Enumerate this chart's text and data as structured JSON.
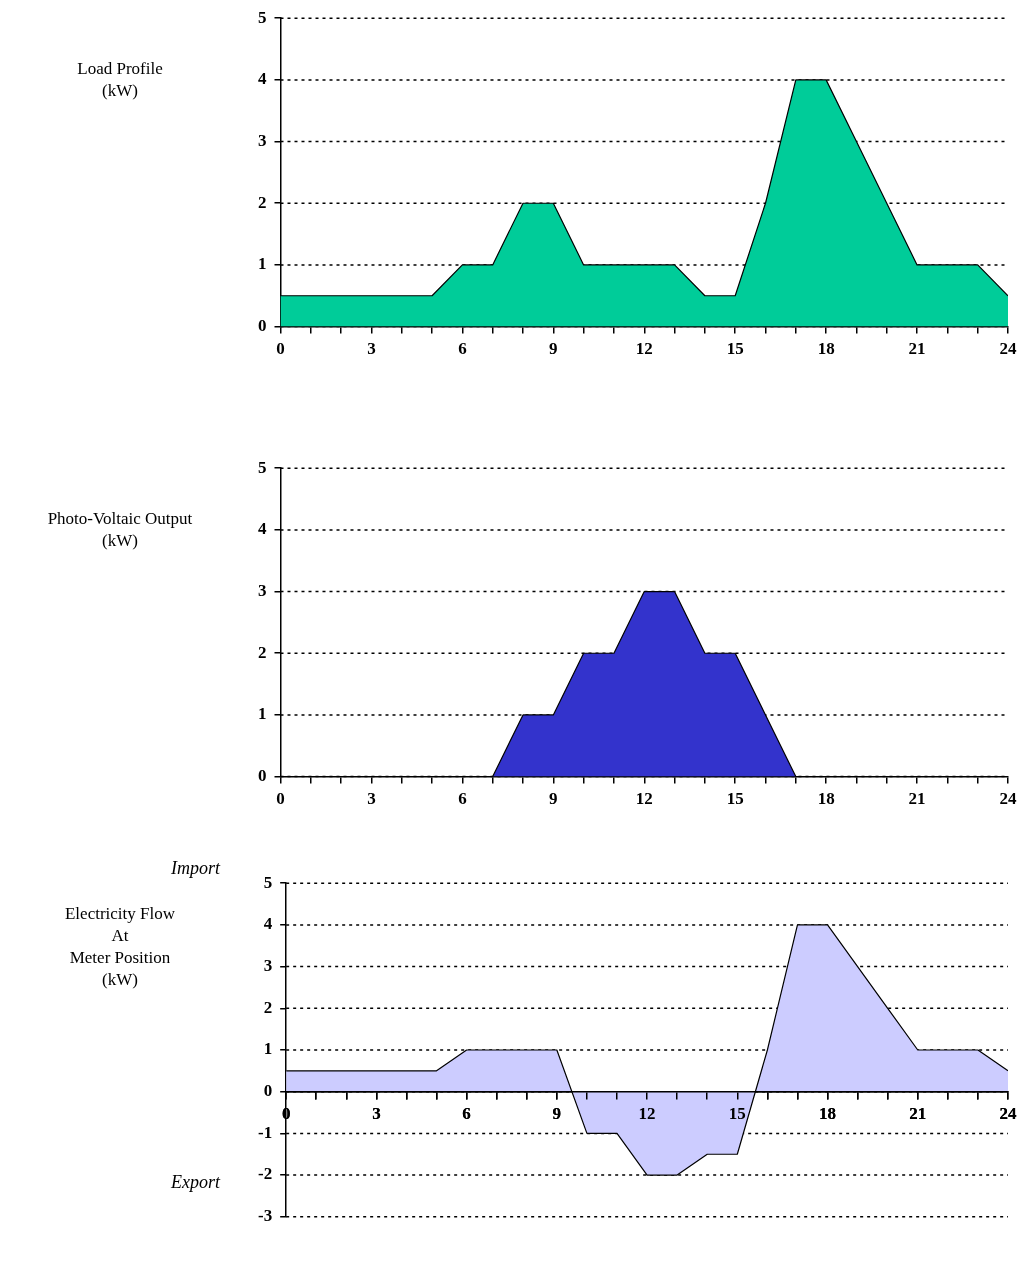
{
  "chart_data": [
    {
      "type": "area",
      "ylabel": "Load Profile\n(kW)",
      "x": [
        0,
        1,
        2,
        3,
        4,
        5,
        6,
        7,
        8,
        9,
        10,
        11,
        12,
        13,
        14,
        15,
        16,
        17,
        18,
        19,
        20,
        21,
        22,
        23,
        24
      ],
      "values": [
        0.5,
        0.5,
        0.5,
        0.5,
        0.5,
        0.5,
        1,
        1,
        2,
        2,
        1,
        1,
        1,
        1,
        0.5,
        0.5,
        2,
        4,
        4,
        3,
        2,
        1,
        1,
        1,
        0.5
      ],
      "color": "#00cc99",
      "xlim": [
        0,
        24
      ],
      "xticks": [
        0,
        {
          "value": 1,
          "label": null
        },
        {
          "value": 2,
          "label": null
        },
        3,
        {
          "value": 4,
          "label": null
        },
        {
          "value": 5,
          "label": null
        },
        6,
        {
          "value": 7,
          "label": null
        },
        {
          "value": 8,
          "label": null
        },
        9,
        {
          "value": 10,
          "label": null
        },
        {
          "value": 11,
          "label": null
        },
        12,
        {
          "value": 13,
          "label": null
        },
        {
          "value": 14,
          "label": null
        },
        15,
        {
          "value": 16,
          "label": null
        },
        {
          "value": 17,
          "label": null
        },
        18,
        {
          "value": 19,
          "label": null
        },
        {
          "value": 20,
          "label": null
        },
        21,
        {
          "value": 22,
          "label": null
        },
        {
          "value": 23,
          "label": null
        },
        24
      ],
      "ylim": [
        0,
        5
      ],
      "yticks": [
        0,
        1,
        2,
        3,
        4,
        5
      ],
      "grid": "y"
    },
    {
      "type": "area",
      "ylabel": "Photo-Voltaic Output\n(kW)",
      "x": [
        0,
        1,
        2,
        3,
        4,
        5,
        6,
        7,
        8,
        9,
        10,
        11,
        12,
        13,
        14,
        15,
        16,
        17,
        18,
        19,
        20,
        21,
        22,
        23,
        24
      ],
      "values": [
        0,
        0,
        0,
        0,
        0,
        0,
        0,
        0,
        1,
        1,
        2,
        2,
        3,
        3,
        2,
        2,
        1,
        0,
        0,
        0,
        0,
        0,
        0,
        0,
        0
      ],
      "color": "#3333cc",
      "xlim": [
        0,
        24
      ],
      "xticks": [
        0,
        {
          "value": 1,
          "label": null
        },
        {
          "value": 2,
          "label": null
        },
        3,
        {
          "value": 4,
          "label": null
        },
        {
          "value": 5,
          "label": null
        },
        6,
        {
          "value": 7,
          "label": null
        },
        {
          "value": 8,
          "label": null
        },
        9,
        {
          "value": 10,
          "label": null
        },
        {
          "value": 11,
          "label": null
        },
        12,
        {
          "value": 13,
          "label": null
        },
        {
          "value": 14,
          "label": null
        },
        15,
        {
          "value": 16,
          "label": null
        },
        {
          "value": 17,
          "label": null
        },
        18,
        {
          "value": 19,
          "label": null
        },
        {
          "value": 20,
          "label": null
        },
        21,
        {
          "value": 22,
          "label": null
        },
        {
          "value": 23,
          "label": null
        },
        24
      ],
      "ylim": [
        0,
        5
      ],
      "yticks": [
        0,
        1,
        2,
        3,
        4,
        5
      ],
      "grid": "y"
    },
    {
      "type": "area",
      "ylabel": "Electricity Flow\nAt\nMeter Position\n(kW)",
      "annotations": [
        "Import",
        "Export"
      ],
      "x": [
        0,
        1,
        2,
        3,
        4,
        5,
        6,
        7,
        8,
        9,
        10,
        11,
        12,
        13,
        14,
        15,
        16,
        17,
        18,
        19,
        20,
        21,
        22,
        23,
        24
      ],
      "values": [
        0.5,
        0.5,
        0.5,
        0.5,
        0.5,
        0.5,
        1,
        1,
        1,
        1,
        -1,
        -1,
        -2,
        -2,
        -1.5,
        -1.5,
        1,
        4,
        4,
        3,
        2,
        1,
        1,
        1,
        0.5
      ],
      "color": "#ccccff",
      "xlim": [
        0,
        24
      ],
      "xticks": [
        0,
        {
          "value": 1,
          "label": null
        },
        {
          "value": 2,
          "label": null
        },
        3,
        {
          "value": 4,
          "label": null
        },
        {
          "value": 5,
          "label": null
        },
        6,
        {
          "value": 7,
          "label": null
        },
        {
          "value": 8,
          "label": null
        },
        9,
        {
          "value": 10,
          "label": null
        },
        {
          "value": 11,
          "label": null
        },
        12,
        {
          "value": 13,
          "label": null
        },
        {
          "value": 14,
          "label": null
        },
        15,
        {
          "value": 16,
          "label": null
        },
        {
          "value": 17,
          "label": null
        },
        18,
        {
          "value": 19,
          "label": null
        },
        {
          "value": 20,
          "label": null
        },
        21,
        {
          "value": 22,
          "label": null
        },
        {
          "value": 23,
          "label": null
        },
        24
      ],
      "ylim": [
        -3,
        5
      ],
      "yticks": [
        -3,
        -2,
        -1,
        0,
        1,
        2,
        3,
        4,
        5
      ],
      "grid": "y"
    }
  ]
}
